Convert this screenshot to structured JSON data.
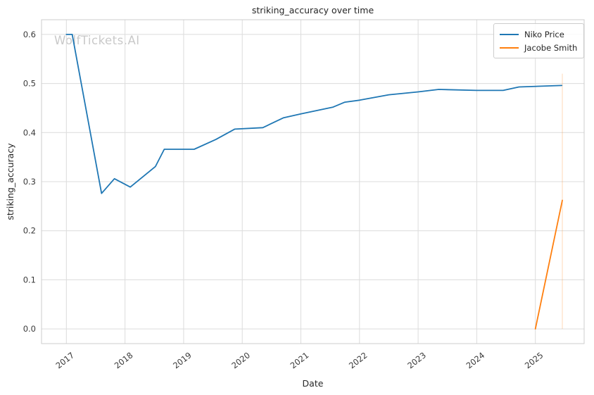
{
  "watermark": "WolfTickets.AI",
  "chart_data": {
    "type": "line",
    "title": "striking_accuracy over time",
    "xlabel": "Date",
    "ylabel": "striking_accuracy",
    "grid": true,
    "legend_position": "upper right",
    "xlim": [
      2016.576,
      2025.832
    ],
    "ylim": [
      -0.03,
      0.63
    ],
    "x_ticks": [
      2017,
      2018,
      2019,
      2020,
      2021,
      2022,
      2023,
      2024,
      2025
    ],
    "y_ticks": [
      0.0,
      0.1,
      0.2,
      0.3,
      0.4,
      0.5,
      0.6
    ],
    "colors": {
      "grid": "#dcdcdc",
      "spine": "#cccccc",
      "tick_text": "#3a3a3a"
    },
    "series": [
      {
        "name": "Niko Price",
        "color": "#1f77b4",
        "x": [
          2017.0,
          2017.1,
          2017.6,
          2017.82,
          2018.09,
          2018.52,
          2018.67,
          2019.18,
          2019.55,
          2019.87,
          2020.35,
          2020.7,
          2021.0,
          2021.55,
          2021.75,
          2022.0,
          2022.5,
          2023.0,
          2023.35,
          2024.0,
          2024.45,
          2024.72,
          2025.45
        ],
        "y": [
          0.6,
          0.6,
          0.276,
          0.306,
          0.289,
          0.331,
          0.366,
          0.366,
          0.386,
          0.407,
          0.41,
          0.43,
          0.438,
          0.452,
          0.462,
          0.466,
          0.477,
          0.483,
          0.488,
          0.486,
          0.486,
          0.493,
          0.496
        ]
      },
      {
        "name": "Jacobe Smith",
        "color": "#ff7f0e",
        "x": [
          2025.0,
          2025.46
        ],
        "y": [
          0.0,
          0.262
        ]
      }
    ],
    "annotations": [
      {
        "type": "vline",
        "x": 2025.46,
        "y0": 0.0,
        "y1": 0.52,
        "color": "#ff7f0e",
        "opacity": 0.25
      }
    ]
  }
}
